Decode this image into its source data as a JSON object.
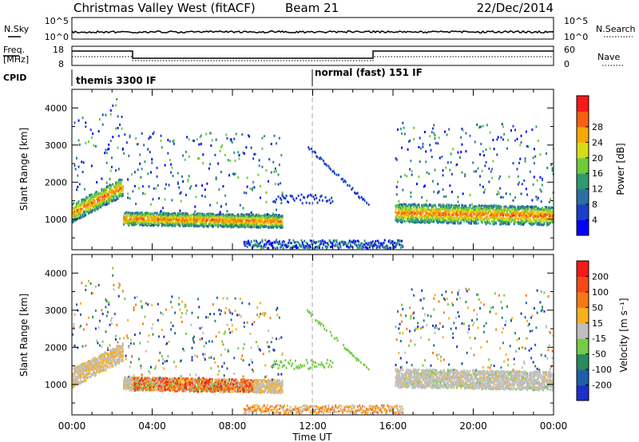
{
  "header": {
    "station": "Christmas Valley West (fitACF)",
    "beam": "Beam 21",
    "date": "22/Dec/2014"
  },
  "summary_panels": {
    "nsky_label": "N.Sky",
    "nsky_ticks": [
      "10^5",
      "10^0"
    ],
    "nsearch_label": "N.Search",
    "nsearch_ticks": [
      "10^5",
      "10^0"
    ],
    "freq_label_line1": "Freq.",
    "freq_label_line2": "[MHz]",
    "freq_ticks": [
      "18",
      "8"
    ],
    "nave_label": "Nave",
    "nave_ticks": [
      "60",
      "0"
    ],
    "cpid_label": "CPID",
    "cpid_modes": [
      {
        "name": "themis 3300 IF",
        "start_hour": 0
      },
      {
        "name": "normal (fast) 151 IF",
        "start_hour": 12
      }
    ]
  },
  "chart_data": [
    {
      "type": "heatmap",
      "name": "power",
      "ylabel": "Slant Range [km]",
      "yticks": [
        "1000",
        "2000",
        "3000",
        "4000"
      ],
      "ylim": [
        180,
        4500
      ],
      "xlim": [
        0,
        24
      ],
      "colorbar_label": "Power [dB]",
      "colorbar_ticks": [
        "4",
        "8",
        "12",
        "16",
        "20",
        "24",
        "28"
      ],
      "colorbar_colors": [
        "#0000ff",
        "#1a3fc8",
        "#2a70a0",
        "#2e9a6e",
        "#6ecb3a",
        "#d8dc18",
        "#f8a808",
        "#f86010",
        "#f81818"
      ]
    },
    {
      "type": "heatmap",
      "name": "velocity",
      "ylabel": "Slant Range [km]",
      "yticks": [
        "1000",
        "2000",
        "3000",
        "4000"
      ],
      "ylim": [
        180,
        4500
      ],
      "xlim": [
        0,
        24
      ],
      "colorbar_label": "Velocity [m s⁻¹]",
      "colorbar_ticks": [
        "200",
        "100",
        "50",
        "15",
        "-15",
        "-50",
        "-100",
        "-200"
      ],
      "colorbar_colors": [
        "#1a30c8",
        "#1e60a8",
        "#2a8a5a",
        "#74cc44",
        "#bebebe",
        "#f8b020",
        "#f87818",
        "#f84818",
        "#f81818"
      ]
    }
  ],
  "xaxis": {
    "label": "Time UT",
    "ticks": [
      "00:00",
      "04:00",
      "08:00",
      "12:00",
      "16:00",
      "20:00",
      "00:00"
    ]
  }
}
